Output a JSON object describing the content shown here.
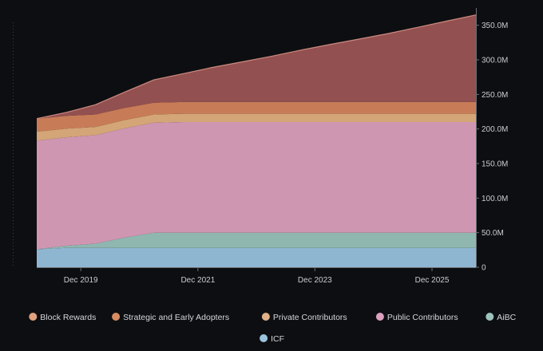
{
  "chart_data": {
    "type": "area",
    "stacked": true,
    "title": "",
    "xlabel": "",
    "ylabel": "",
    "x": [
      "2019-03",
      "2019-09",
      "2020-03",
      "2020-09",
      "2021-03",
      "2021-09",
      "2022-03",
      "2022-09",
      "2023-03",
      "2023-09",
      "2024-03",
      "2024-09",
      "2025-03",
      "2025-09",
      "2026-03",
      "2026-09"
    ],
    "x_tick_labels": [
      "Dec 2019",
      "Dec 2021",
      "Dec 2023",
      "Dec 2025"
    ],
    "y_tick_labels": [
      "0",
      "50.0M",
      "100.0M",
      "150.0M",
      "200.0M",
      "250.0M",
      "300.0M",
      "350.0M"
    ],
    "y_axis_side": "right",
    "ylim": [
      0,
      375000000
    ],
    "grid": false,
    "legend_position": "bottom",
    "series": [
      {
        "name": "ICF",
        "color": "#8fb6d1",
        "values": [
          26000000,
          28000000,
          28000000,
          28000000,
          28000000,
          28000000,
          28000000,
          28000000,
          28000000,
          28000000,
          28000000,
          28000000,
          28000000,
          28000000,
          28000000,
          28000000
        ]
      },
      {
        "name": "AiBC",
        "color": "#8fb7b0",
        "values": [
          0,
          3000000,
          6000000,
          15000000,
          22000000,
          22000000,
          22000000,
          22000000,
          22000000,
          22000000,
          22000000,
          22000000,
          22000000,
          22000000,
          22000000,
          22000000
        ]
      },
      {
        "name": "Public Contributors",
        "color": "#cf96b2",
        "values": [
          157000000,
          157000000,
          157000000,
          158000000,
          159000000,
          160000000,
          160000000,
          160000000,
          160000000,
          160000000,
          160000000,
          160000000,
          160000000,
          160000000,
          160000000,
          160000000
        ]
      },
      {
        "name": "Private Contributors",
        "color": "#d4a577",
        "values": [
          13000000,
          12500000,
          12000000,
          12000000,
          12000000,
          12000000,
          12000000,
          12000000,
          12000000,
          12000000,
          12000000,
          12000000,
          12000000,
          12000000,
          12000000,
          12000000
        ]
      },
      {
        "name": "Strategic and Early Adopters",
        "color": "#c77c57",
        "values": [
          19000000,
          18500000,
          18000000,
          17500000,
          17000000,
          17000000,
          17000000,
          17000000,
          17000000,
          17000000,
          17000000,
          17000000,
          17000000,
          17000000,
          17000000,
          17000000
        ]
      },
      {
        "name": "Block Rewards",
        "color": "#935050",
        "values": [
          0,
          5000000,
          14000000,
          23000000,
          33000000,
          41000000,
          50000000,
          58000000,
          66000000,
          75000000,
          83000000,
          91000000,
          99000000,
          108000000,
          117000000,
          126000000
        ]
      }
    ]
  },
  "legend": {
    "row1": [
      "Block Rewards",
      "Strategic and Early Adopters",
      "Private Contributors",
      "Public Contributors",
      "AiBC"
    ],
    "row2": [
      "ICF"
    ],
    "marker_colors": {
      "Block Rewards": "#e0a27f",
      "Strategic and Early Adopters": "#d88c62",
      "Private Contributors": "#dfb287",
      "Public Contributors": "#dba0bd",
      "AiBC": "#9cc2bb",
      "ICF": "#9cc3dd"
    }
  },
  "colors": {
    "background": "#0d0e11",
    "axis": "#6b6f75",
    "tick_text": "#c9ccd1",
    "top_line": "#cc8a80"
  }
}
